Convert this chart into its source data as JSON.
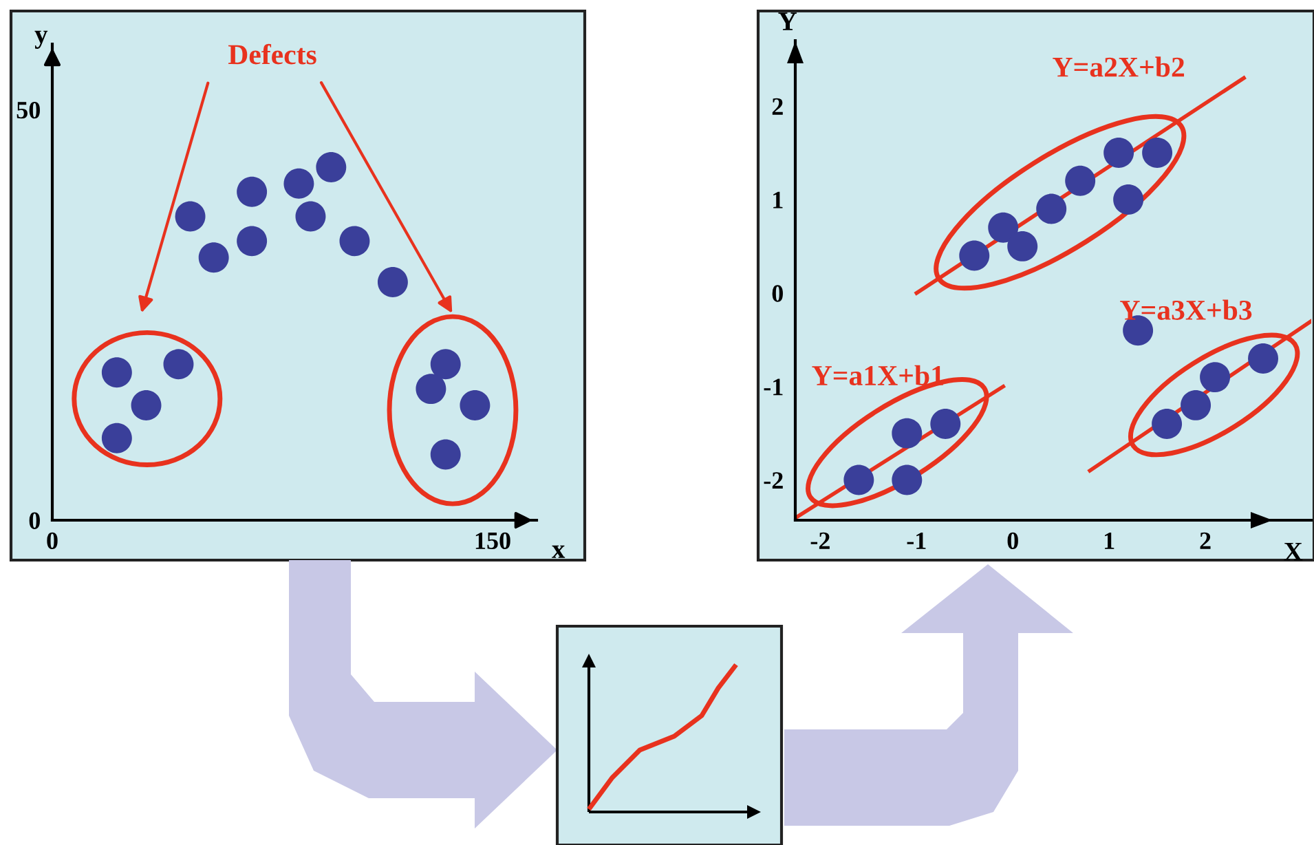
{
  "chart_data": [
    {
      "type": "scatter",
      "xlabel": "x",
      "ylabel": "y",
      "xlim": [
        0,
        165
      ],
      "ylim": [
        0,
        58
      ],
      "xticks": [
        0,
        150
      ],
      "yticks": [
        0,
        50
      ],
      "grid": false,
      "annotations": [
        "Defects"
      ],
      "series": [
        {
          "marker": "circle",
          "color": "#3a3f9a",
          "x": [
            22,
            43,
            32,
            22,
            47,
            55,
            68,
            68,
            84,
            88,
            95,
            103,
            116,
            134,
            129,
            144,
            134
          ],
          "values": [
            18,
            19,
            14,
            10,
            37,
            32,
            40,
            34,
            41,
            37,
            43,
            34,
            29,
            19,
            16,
            14,
            8
          ]
        }
      ]
    },
    {
      "type": "scatter",
      "xlabel": "X",
      "ylabel": "Y",
      "xlim": [
        -2.26,
        3.1
      ],
      "ylim": [
        -2.43,
        2.7
      ],
      "xticks": [
        -2,
        -1,
        0,
        1,
        2
      ],
      "yticks": [
        -2,
        -1,
        0,
        1,
        2
      ],
      "grid": false,
      "series": [
        {
          "marker": "circle",
          "color": "#3a3f9a",
          "x": [
            -0.4,
            -0.1,
            0.1,
            0.4,
            0.7,
            1.1,
            1.2,
            1.5,
            1.3,
            -1.6,
            -1.1,
            -1.1,
            -0.7,
            1.6,
            1.9,
            2.1,
            2.6
          ],
          "values": [
            0.4,
            0.7,
            0.5,
            0.9,
            1.2,
            1.5,
            1.0,
            1.5,
            -0.4,
            -2.0,
            -2.0,
            -1.5,
            -1.4,
            -1.4,
            -1.2,
            -0.9,
            -0.7
          ]
        },
        {
          "type": "line",
          "name": "Y=a1X+b1",
          "color": "#e8321e",
          "x": [
            -2.25,
            -0.1
          ],
          "values": [
            -2.4,
            -1.0
          ]
        },
        {
          "type": "line",
          "name": "Y=a2X+b2",
          "color": "#e8321e",
          "x": [
            -1.0,
            2.4
          ],
          "values": [
            0.0,
            2.3
          ]
        },
        {
          "type": "line",
          "name": "Y=a3X+b3",
          "color": "#e8321e",
          "x": [
            0.8,
            3.1
          ],
          "values": [
            -1.9,
            -0.3
          ]
        }
      ]
    }
  ]
}
